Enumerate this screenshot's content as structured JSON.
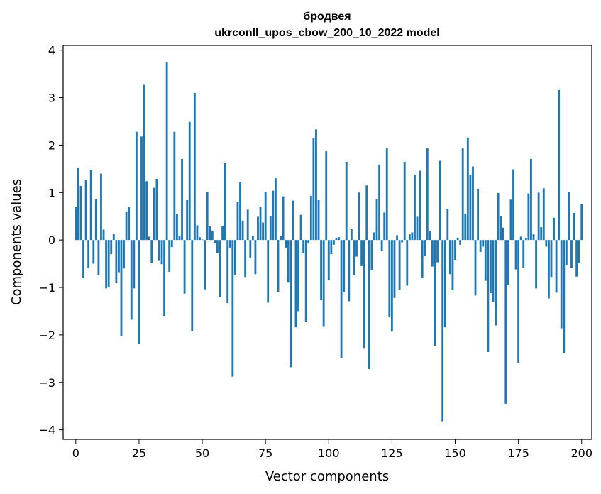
{
  "chart_data": {
    "type": "bar",
    "title_line1": "бродвея",
    "title_line2": "ukrconll_upos_cbow_200_10_2022 model",
    "xlabel": "Vector components",
    "ylabel": "Components values",
    "xlim": [
      -5,
      204
    ],
    "ylim": [
      -4.2,
      4.1
    ],
    "xticks": [
      0,
      25,
      50,
      75,
      100,
      125,
      150,
      175,
      200
    ],
    "yticks": [
      -4,
      -3,
      -2,
      -1,
      0,
      1,
      2,
      3,
      4
    ],
    "xtick_labels": [
      "0",
      "25",
      "50",
      "75",
      "100",
      "125",
      "150",
      "175",
      "200"
    ],
    "ytick_labels": [
      "−4",
      "−3",
      "−2",
      "−1",
      "0",
      "1",
      "2",
      "3",
      "4"
    ],
    "grid": false,
    "color": "#1f77b4",
    "values": [
      0.7,
      1.53,
      1.14,
      -0.8,
      1.26,
      -0.58,
      1.48,
      -0.5,
      0.86,
      -0.74,
      1.4,
      0.22,
      -1.02,
      -1.0,
      -0.3,
      0.13,
      -0.91,
      -0.68,
      -2.02,
      -0.6,
      0.6,
      0.69,
      -1.68,
      -1.02,
      2.28,
      -2.19,
      2.18,
      3.27,
      1.24,
      0.07,
      -0.48,
      1.1,
      1.29,
      -0.44,
      -0.51,
      -1.6,
      3.74,
      -0.67,
      -0.15,
      2.28,
      0.54,
      0.09,
      1.71,
      -1.13,
      0.84,
      2.49,
      -1.92,
      3.1,
      0.31,
      0.06,
      0.01,
      -1.04,
      1.02,
      0.29,
      0.2,
      -0.07,
      -0.27,
      -1.21,
      0.3,
      1.63,
      -1.33,
      -0.16,
      -2.88,
      -0.74,
      0.81,
      1.22,
      0.41,
      -0.78,
      0.64,
      -0.37,
      0.08,
      -0.72,
      0.49,
      0.69,
      0.37,
      1.01,
      -1.32,
      0.51,
      1.04,
      1.3,
      -1.09,
      0.08,
      0.92,
      -0.16,
      -0.9,
      -2.68,
      0.83,
      -1.84,
      -1.5,
      0.53,
      -0.28,
      -1.72,
      -0.06,
      0.93,
      2.14,
      2.33,
      0.84,
      -1.27,
      -1.83,
      1.87,
      -0.85,
      -0.3,
      -0.1,
      0.04,
      0.06,
      -2.48,
      -1.1,
      1.65,
      -1.29,
      0.23,
      -0.74,
      -0.35,
      1.0,
      -0.55,
      -2.29,
      1.15,
      -2.72,
      -0.64,
      0.16,
      0.86,
      1.59,
      -0.23,
      0.58,
      1.93,
      -1.63,
      -1.93,
      -1.22,
      0.1,
      -1.05,
      -0.05,
      1.65,
      -0.96,
      0.12,
      0.16,
      1.37,
      0.49,
      1.46,
      -0.79,
      -0.34,
      1.93,
      0.19,
      -0.56,
      -2.23,
      -0.47,
      1.67,
      -3.82,
      -1.84,
      0.66,
      -0.72,
      -1.06,
      -0.42,
      0.05,
      -0.1,
      1.93,
      0.55,
      2.16,
      1.38,
      1.55,
      -1.17,
      1.08,
      -0.25,
      -0.14,
      -0.86,
      -2.36,
      -1.12,
      -1.3,
      -1.8,
      0.99,
      0.5,
      0.26,
      -3.45,
      -0.95,
      0.85,
      1.49,
      -0.62,
      -2.59,
      0.07,
      -0.59,
      0.04,
      0.98,
      1.71,
      0.12,
      -1.02,
      1.0,
      0.27,
      1.09,
      -0.14,
      -1.23,
      -0.78,
      0.47,
      -1.11,
      3.16,
      -1.86,
      -2.38,
      -0.52,
      1.01,
      -0.59,
      0.57,
      -0.77,
      -0.49,
      0.75
    ]
  }
}
